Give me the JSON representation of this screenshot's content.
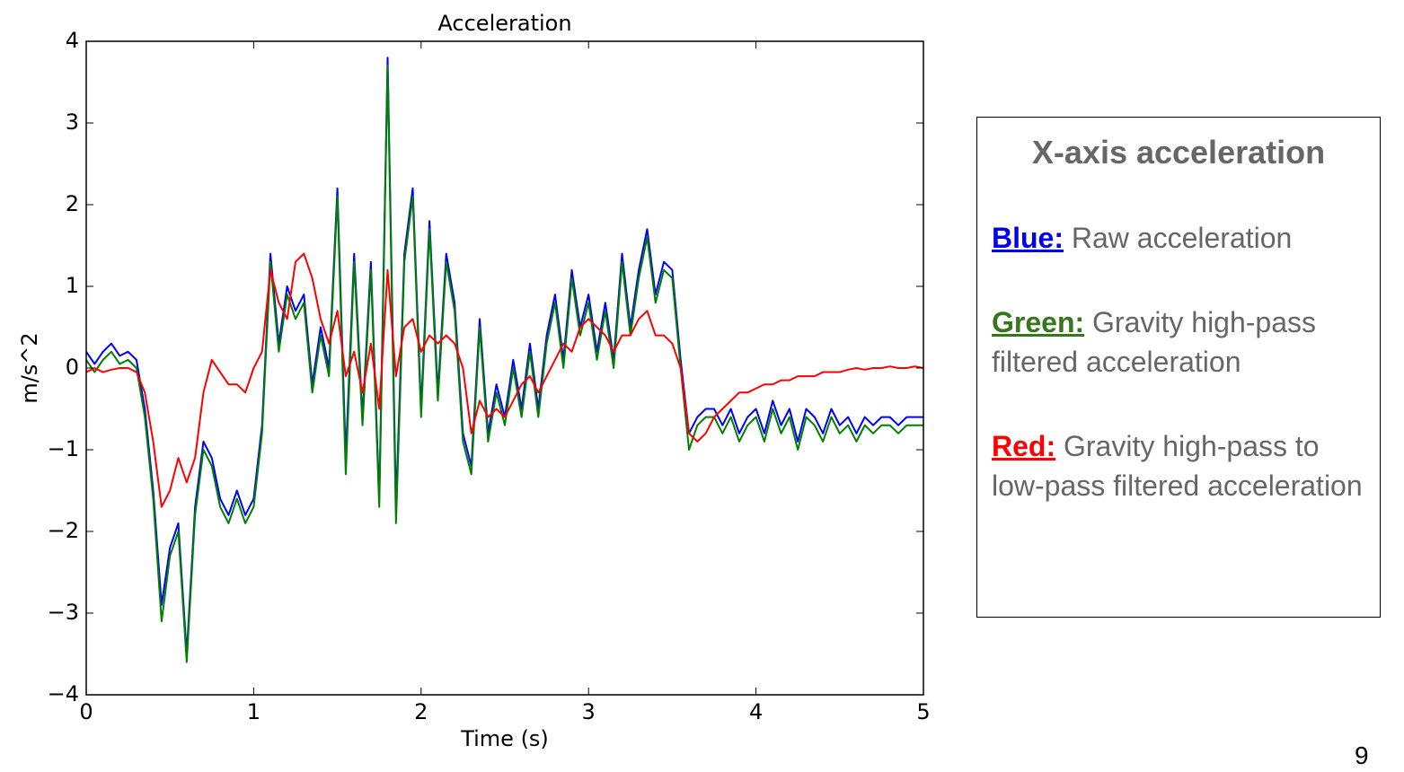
{
  "chart_data": {
    "type": "line",
    "title": "Acceleration",
    "x_label": "Time (s)",
    "y_label": "m/s^2",
    "x": [
      0,
      0.05,
      0.1,
      0.15,
      0.2,
      0.25,
      0.3,
      0.35,
      0.4,
      0.45,
      0.5,
      0.55,
      0.6,
      0.65,
      0.7,
      0.75,
      0.8,
      0.85,
      0.9,
      0.95,
      1,
      1.05,
      1.1,
      1.15,
      1.2,
      1.25,
      1.3,
      1.35,
      1.4,
      1.45,
      1.5,
      1.55,
      1.6,
      1.65,
      1.7,
      1.75,
      1.8,
      1.85,
      1.9,
      1.95,
      2,
      2.05,
      2.1,
      2.15,
      2.2,
      2.25,
      2.3,
      2.35,
      2.4,
      2.45,
      2.5,
      2.55,
      2.6,
      2.65,
      2.7,
      2.75,
      2.8,
      2.85,
      2.9,
      2.95,
      3,
      3.05,
      3.1,
      3.15,
      3.2,
      3.25,
      3.3,
      3.35,
      3.4,
      3.45,
      3.5,
      3.55,
      3.6,
      3.65,
      3.7,
      3.75,
      3.8,
      3.85,
      3.9,
      3.95,
      4,
      4.05,
      4.1,
      4.15,
      4.2,
      4.25,
      4.3,
      4.35,
      4.4,
      4.45,
      4.5,
      4.55,
      4.6,
      4.65,
      4.7,
      4.75,
      4.8,
      4.85,
      4.9,
      4.95,
      5
    ],
    "series": [
      {
        "name": "Blue:",
        "color": "#0000ff",
        "values": [
          0.2,
          0.05,
          0.2,
          0.3,
          0.15,
          0.2,
          0.1,
          -0.5,
          -1.5,
          -2.9,
          -2.2,
          -1.9,
          -3.5,
          -1.7,
          -0.9,
          -1.1,
          -1.6,
          -1.8,
          -1.5,
          -1.8,
          -1.6,
          -0.7,
          1.4,
          0.3,
          1.0,
          0.7,
          0.9,
          -0.2,
          0.5,
          0.0,
          2.2,
          -1.1,
          1.4,
          -0.6,
          1.3,
          -1.6,
          3.8,
          -1.7,
          1.4,
          2.2,
          -0.5,
          1.8,
          -0.3,
          1.4,
          0.8,
          -0.8,
          -1.2,
          0.6,
          -0.8,
          -0.2,
          -0.6,
          0.1,
          -0.5,
          0.3,
          -0.5,
          0.4,
          0.9,
          0.1,
          1.2,
          0.5,
          0.9,
          0.2,
          0.8,
          0.1,
          1.4,
          0.5,
          1.2,
          1.7,
          0.9,
          1.3,
          1.2,
          0.1,
          -0.8,
          -0.6,
          -0.5,
          -0.5,
          -0.7,
          -0.5,
          -0.8,
          -0.6,
          -0.5,
          -0.8,
          -0.4,
          -0.7,
          -0.5,
          -0.9,
          -0.5,
          -0.6,
          -0.8,
          -0.5,
          -0.7,
          -0.6,
          -0.8,
          -0.6,
          -0.7,
          -0.6,
          -0.6,
          -0.7,
          -0.6,
          -0.6,
          -0.6
        ]
      },
      {
        "name": "Green:",
        "color": "#007f00",
        "values": [
          0.1,
          -0.05,
          0.1,
          0.2,
          0.05,
          0.1,
          0.0,
          -0.6,
          -1.6,
          -3.1,
          -2.3,
          -2.0,
          -3.6,
          -1.8,
          -1.0,
          -1.2,
          -1.7,
          -1.9,
          -1.6,
          -1.9,
          -1.7,
          -0.8,
          1.3,
          0.2,
          0.9,
          0.6,
          0.8,
          -0.3,
          0.4,
          -0.1,
          2.1,
          -1.3,
          1.3,
          -0.7,
          1.2,
          -1.7,
          3.7,
          -1.9,
          1.3,
          2.1,
          -0.6,
          1.7,
          -0.4,
          1.3,
          0.7,
          -0.9,
          -1.3,
          0.5,
          -0.9,
          -0.3,
          -0.7,
          0.0,
          -0.6,
          0.2,
          -0.6,
          0.3,
          0.8,
          0.0,
          1.1,
          0.4,
          0.8,
          0.1,
          0.7,
          0.0,
          1.3,
          0.4,
          1.1,
          1.6,
          0.8,
          1.2,
          1.1,
          0.0,
          -1.0,
          -0.7,
          -0.6,
          -0.6,
          -0.8,
          -0.6,
          -0.9,
          -0.7,
          -0.6,
          -0.9,
          -0.5,
          -0.8,
          -0.6,
          -1.0,
          -0.6,
          -0.7,
          -0.9,
          -0.6,
          -0.8,
          -0.7,
          -0.9,
          -0.7,
          -0.8,
          -0.7,
          -0.7,
          -0.8,
          -0.7,
          -0.7,
          -0.7
        ]
      },
      {
        "name": "Red:",
        "color": "#ff0000",
        "values": [
          -0.05,
          0,
          -0.05,
          -0.02,
          0,
          0,
          -0.05,
          -0.3,
          -0.9,
          -1.7,
          -1.5,
          -1.1,
          -1.4,
          -1.1,
          -0.3,
          0.1,
          -0.05,
          -0.2,
          -0.2,
          -0.3,
          0.0,
          0.2,
          1.2,
          0.8,
          0.6,
          1.3,
          1.4,
          1.1,
          0.6,
          0.3,
          0.7,
          -0.1,
          0.2,
          -0.3,
          0.3,
          -0.5,
          1.2,
          -0.1,
          0.5,
          0.6,
          0.2,
          0.4,
          0.3,
          0.4,
          0.3,
          0.0,
          -0.8,
          -0.4,
          -0.6,
          -0.5,
          -0.6,
          -0.4,
          -0.2,
          -0.1,
          -0.3,
          -0.1,
          0.1,
          0.3,
          0.2,
          0.5,
          0.6,
          0.5,
          0.4,
          0.2,
          0.4,
          0.4,
          0.6,
          0.7,
          0.4,
          0.4,
          0.3,
          0.0,
          -0.8,
          -0.9,
          -0.8,
          -0.6,
          -0.5,
          -0.4,
          -0.3,
          -0.3,
          -0.25,
          -0.2,
          -0.2,
          -0.15,
          -0.15,
          -0.1,
          -0.1,
          -0.1,
          -0.05,
          -0.05,
          -0.05,
          -0.02,
          0,
          -0.02,
          0,
          0,
          0.02,
          0,
          0,
          0.02,
          0
        ]
      }
    ],
    "xlim": [
      0,
      5
    ],
    "xticks": [
      0,
      1,
      2,
      3,
      4,
      5
    ],
    "ylim": [
      -4,
      4
    ],
    "yticks": [
      {
        "value": -4,
        "label": "−4"
      },
      {
        "value": -3,
        "label": "−3"
      },
      {
        "value": -2,
        "label": "−2"
      },
      {
        "value": -1,
        "label": "−1"
      },
      0,
      1,
      2,
      3,
      4
    ],
    "grid": false
  },
  "panel": {
    "title": "X-axis acceleration",
    "label_colors": [
      "#0000ee",
      "#38761d",
      "#ff0000"
    ],
    "descriptions": [
      "Raw acceleration",
      "Gravity high-pass filtered acceleration",
      "Gravity high-pass to low-pass filtered acceleration"
    ]
  },
  "page_number": "9"
}
